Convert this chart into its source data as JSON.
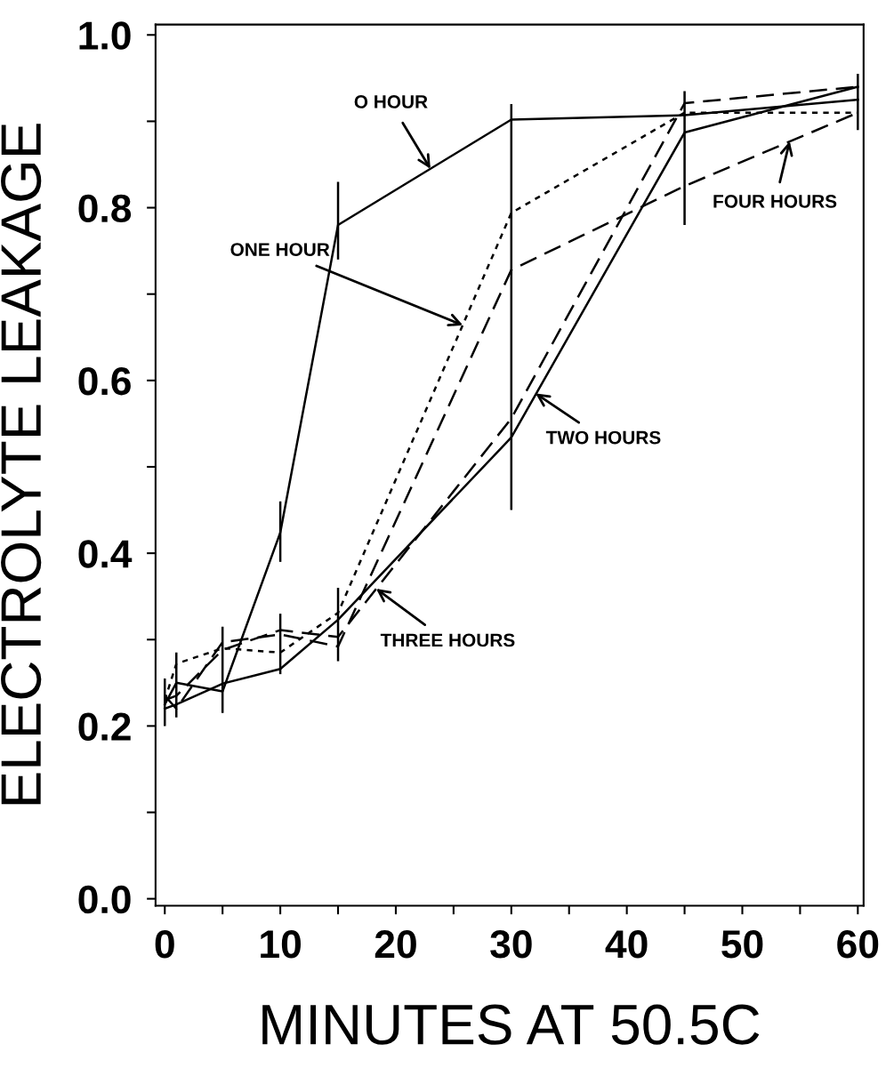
{
  "chart_data": {
    "type": "line",
    "xlabel": "MINUTES AT 50.5C",
    "ylabel": "ELECTROLYTE LEAKAGE",
    "x": [
      0,
      1,
      5,
      10,
      15,
      30,
      45,
      60
    ],
    "series": [
      {
        "color": "#000000",
        "line_style": "solid",
        "values": [
          0.225,
          0.25,
          0.24,
          0.424,
          0.78,
          0.902,
          0.907,
          0.925
        ],
        "errors": [
          [
            0.2,
            0.255
          ],
          [
            0.21,
            0.285
          ],
          [
            0.215,
            0.315
          ],
          [
            0.39,
            0.46
          ],
          [
            0.74,
            0.83
          ],
          [
            0.45,
            0.92
          ],
          [
            0.78,
            0.935
          ],
          [
            0.89,
            0.955
          ]
        ]
      },
      {
        "color": "#000000",
        "line_style": "dotted",
        "values": [
          0.23,
          0.272,
          0.29,
          0.285,
          0.331,
          0.794,
          0.91,
          0.91
        ]
      },
      {
        "color": "#000000",
        "line_style": "solid",
        "values": [
          0.22,
          0.225,
          0.249,
          0.266,
          0.323,
          0.534,
          0.887,
          0.94
        ],
        "errors": [
          null,
          null,
          null,
          [
            0.26,
            0.33
          ],
          [
            0.275,
            0.36
          ],
          null,
          null,
          null
        ]
      },
      {
        "color": "#000000",
        "line_style": "dashed",
        "values": [
          0.23,
          0.235,
          0.288,
          0.311,
          0.303,
          0.556,
          0.921,
          0.94
        ]
      },
      {
        "color": "#000000",
        "line_style": "dashed",
        "values": [
          0.235,
          0.22,
          0.297,
          0.306,
          0.292,
          0.728,
          0.825,
          0.91
        ]
      }
    ],
    "annotations": [
      {
        "text": "O HOUR",
        "x": 23,
        "y": 0.845
      },
      {
        "text": "ONE HOUR",
        "x": 25.8,
        "y": 0.664
      },
      {
        "text": "TWO HOURS",
        "x": 32.1,
        "y": 0.585
      },
      {
        "text": "THREE HOURS",
        "x": 18.3,
        "y": 0.359
      },
      {
        "text": "FOUR HOURS",
        "x": 54.1,
        "y": 0.877
      }
    ],
    "xlim": [
      -0.8,
      60.5
    ],
    "ylim": [
      -0.008,
      1.012
    ],
    "xticks": [
      0,
      {
        "value": 5,
        "label": null
      },
      10,
      {
        "value": 15,
        "label": null
      },
      20,
      {
        "value": 25,
        "label": null
      },
      30,
      {
        "value": 35,
        "label": null
      },
      40,
      {
        "value": 45,
        "label": null
      },
      50,
      {
        "value": 55,
        "label": null
      },
      60
    ],
    "yticks": [
      {
        "value": 0,
        "label": "0.0"
      },
      {
        "value": 0.1,
        "label": null
      },
      0.2,
      {
        "value": 0.3,
        "label": null
      },
      0.4,
      {
        "value": 0.5,
        "label": null
      },
      0.6,
      {
        "value": 0.7,
        "label": null
      },
      0.8,
      {
        "value": 0.9,
        "label": null
      },
      {
        "value": 1,
        "label": "1.0"
      }
    ],
    "grid": false,
    "legend": false,
    "marker": "none"
  }
}
